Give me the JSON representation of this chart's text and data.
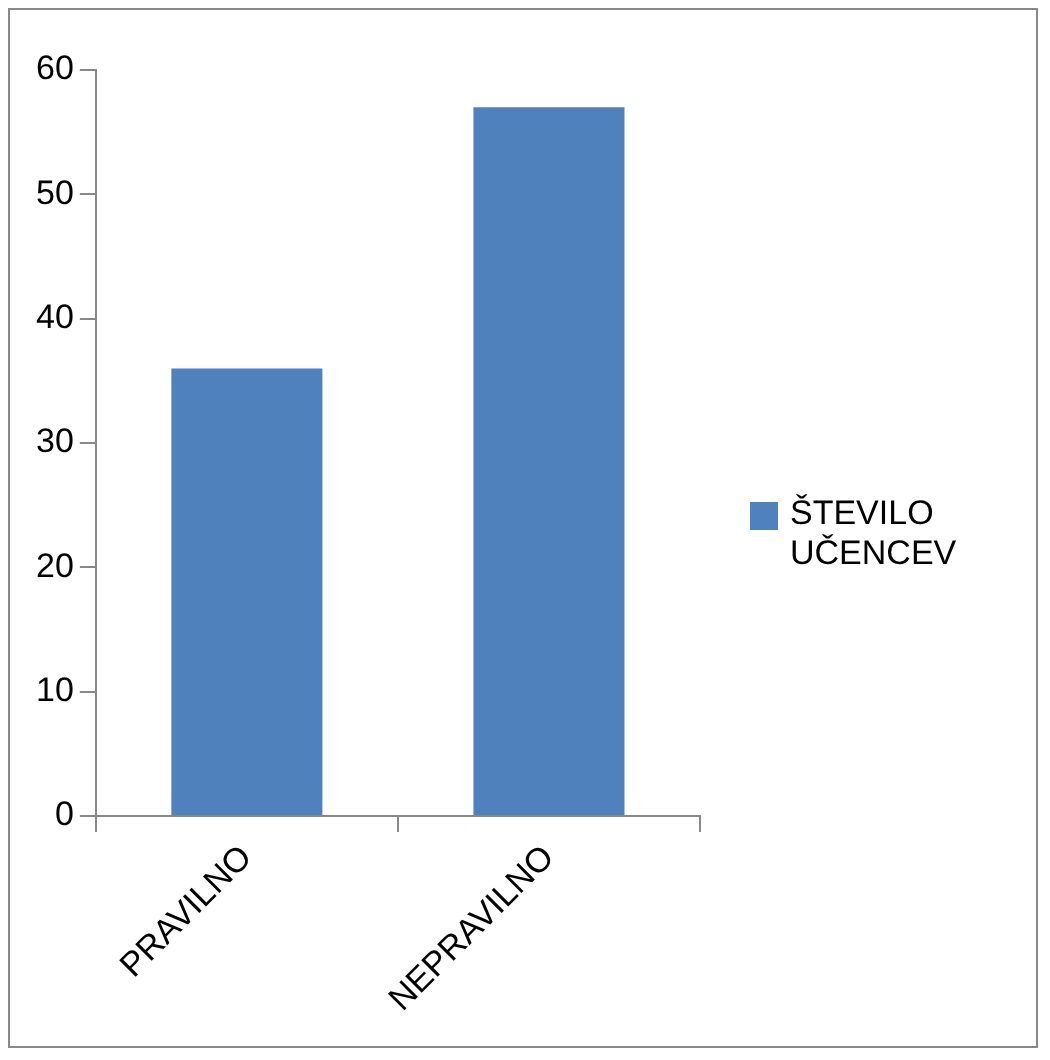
{
  "chart_data": {
    "type": "bar",
    "categories": [
      "PRAVILNO",
      "NEPRAVILNO"
    ],
    "series": [
      {
        "name": "ŠTEVILO UČENCEV",
        "color": "#4f81bd",
        "values": [
          36,
          57
        ]
      }
    ],
    "ylim": [
      0,
      60
    ],
    "yticks": [
      0,
      10,
      20,
      30,
      40,
      50,
      60
    ],
    "grid": false,
    "legend": "right"
  }
}
